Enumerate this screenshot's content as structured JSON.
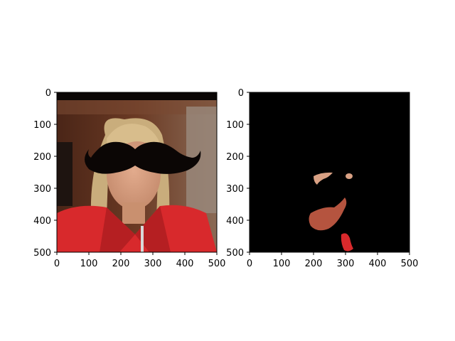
{
  "chart_data": [
    {
      "type": "image",
      "subject": "photo of a blonde woman in a red jacket with a black mustache drawn across her face",
      "xlim": [
        0,
        500
      ],
      "ylim": [
        500,
        0
      ],
      "xticks": [
        0,
        100,
        200,
        300,
        400,
        500
      ],
      "yticks": [
        0,
        100,
        200,
        300,
        400,
        500
      ],
      "xtick_labels": [
        "0",
        "100",
        "200",
        "300",
        "400",
        "500"
      ],
      "ytick_labels": [
        "0",
        "100",
        "200",
        "300",
        "400",
        "500"
      ]
    },
    {
      "type": "image",
      "subject": "black image with small segmented skin-coloured regions and red regions",
      "xlim": [
        0,
        500
      ],
      "ylim": [
        500,
        0
      ],
      "xticks": [
        0,
        100,
        200,
        300,
        400,
        500
      ],
      "yticks": [
        0,
        100,
        200,
        300,
        400,
        500
      ],
      "xtick_labels": [
        "0",
        "100",
        "200",
        "300",
        "400",
        "500"
      ],
      "ytick_labels": [
        "0",
        "100",
        "200",
        "300",
        "400",
        "500"
      ]
    }
  ],
  "colors": {
    "axis": "#000000",
    "background": "#ffffff",
    "mask_background": "#000000",
    "mustache": "#0b0605",
    "jacket": "#d8292c",
    "hair": "#c9ad7c",
    "skin": "#d9a184",
    "wall": "#5a2e1c"
  }
}
